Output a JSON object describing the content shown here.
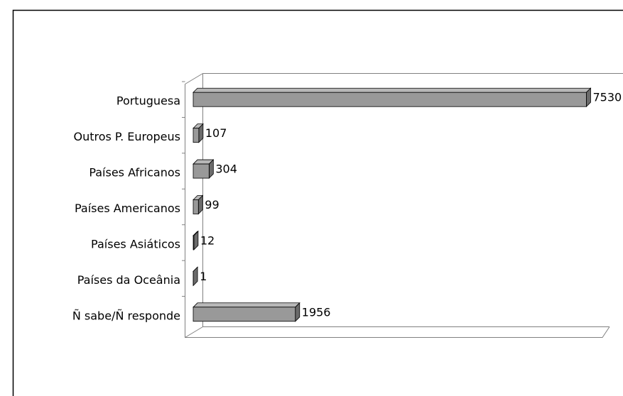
{
  "chart_data": {
    "type": "bar3d_horizontal",
    "categories": [
      "Portuguesa",
      "Outros P. Europeus",
      "Países Africanos",
      "Países Americanos",
      "Países Asiáticos",
      "Países da Oceânia",
      "Ñ sabe/Ñ responde"
    ],
    "values": [
      7530,
      107,
      304,
      99,
      12,
      1,
      1956
    ],
    "color": "#999999",
    "xlim": [
      0,
      8000
    ]
  }
}
